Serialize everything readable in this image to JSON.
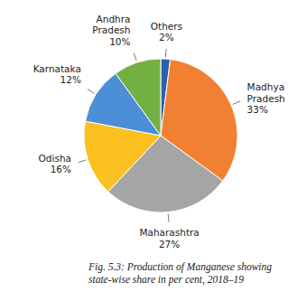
{
  "chart_data": {
    "type": "pie",
    "title": "Fig. 5.3: Production of Manganese showing state-wise share in per cent, 2018–19",
    "categories": [
      "Others",
      "Madhya Pradesh",
      "Maharashtra",
      "Odisha",
      "Karnataka",
      "Andhra Pradesh"
    ],
    "values": [
      2,
      33,
      27,
      16,
      12,
      10
    ],
    "value_labels": [
      "2%",
      "33%",
      "27%",
      "16%",
      "12%",
      "10%"
    ],
    "colors": [
      "#2d5fb0",
      "#f28032",
      "#a5a5a5",
      "#fcc020",
      "#4d8fd6",
      "#72b043"
    ],
    "data_labels": true
  }
}
